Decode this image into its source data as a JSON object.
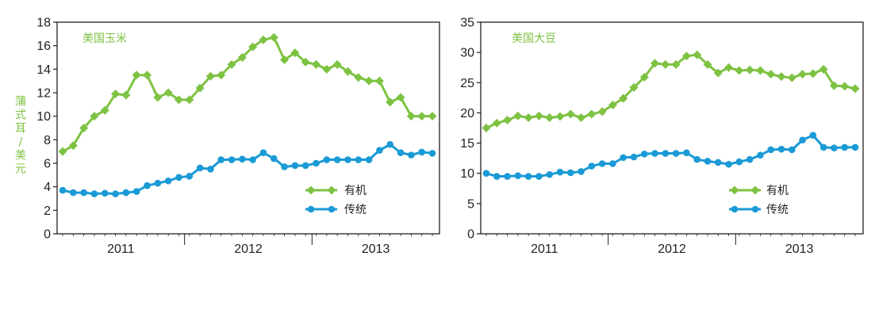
{
  "colors": {
    "organic": "#7dc242",
    "conventional": "#1a9ad6",
    "axis": "#231f20"
  },
  "chart_data": [
    {
      "type": "line",
      "title": "美国玉米",
      "ylabel": "蒲式耳/美元",
      "xlabel": "",
      "ylim": [
        0,
        18
      ],
      "yticks": [
        0,
        2,
        4,
        6,
        8,
        10,
        12,
        14,
        16,
        18
      ],
      "years": [
        "2011",
        "2012",
        "2013"
      ],
      "months_per_year": 12,
      "legend_position": "bottom-right",
      "series": [
        {
          "name": "有机",
          "marker": "diamond",
          "color": "organic",
          "values": [
            7.0,
            7.5,
            9.0,
            10.0,
            10.5,
            11.9,
            11.8,
            13.5,
            13.5,
            11.6,
            12.0,
            11.4,
            11.4,
            12.4,
            13.4,
            13.5,
            14.4,
            15.0,
            15.9,
            16.5,
            16.7,
            14.8,
            15.4,
            14.6,
            14.4,
            14.0,
            14.4,
            13.8,
            13.3,
            13.0,
            13.0,
            11.2,
            11.6,
            10.0,
            10.0,
            10.0
          ]
        },
        {
          "name": "传统",
          "marker": "circle",
          "color": "conventional",
          "values": [
            3.7,
            3.5,
            3.5,
            3.4,
            3.45,
            3.4,
            3.5,
            3.6,
            4.1,
            4.3,
            4.5,
            4.8,
            4.9,
            5.6,
            5.5,
            6.3,
            6.3,
            6.35,
            6.3,
            6.9,
            6.4,
            5.7,
            5.8,
            5.8,
            6.0,
            6.3,
            6.3,
            6.3,
            6.3,
            6.3,
            7.1,
            7.6,
            6.9,
            6.7,
            6.95,
            6.85
          ]
        }
      ]
    },
    {
      "type": "line",
      "title": "美国大豆",
      "ylabel": "",
      "xlabel": "",
      "ylim": [
        0,
        35
      ],
      "yticks": [
        0,
        5,
        10,
        15,
        20,
        25,
        30,
        35
      ],
      "years": [
        "2011",
        "2012",
        "2013"
      ],
      "months_per_year": 12,
      "legend_position": "bottom-right",
      "series": [
        {
          "name": "有机",
          "marker": "diamond",
          "color": "organic",
          "values": [
            17.5,
            18.3,
            18.8,
            19.5,
            19.2,
            19.5,
            19.2,
            19.4,
            19.8,
            19.2,
            19.8,
            20.2,
            21.3,
            22.4,
            24.2,
            25.9,
            28.2,
            28.0,
            28.0,
            29.4,
            29.6,
            28.0,
            26.6,
            27.5,
            27.0,
            27.1,
            27.0,
            26.4,
            26.0,
            25.8,
            26.4,
            26.5,
            27.2,
            24.5,
            24.4,
            24.0
          ]
        },
        {
          "name": "传统",
          "marker": "circle",
          "color": "conventional",
          "values": [
            10.0,
            9.5,
            9.5,
            9.6,
            9.5,
            9.5,
            9.8,
            10.2,
            10.1,
            10.3,
            11.2,
            11.6,
            11.6,
            12.6,
            12.7,
            13.2,
            13.3,
            13.3,
            13.3,
            13.4,
            12.3,
            12.0,
            11.8,
            11.5,
            11.9,
            12.3,
            13.0,
            13.9,
            14.0,
            13.9,
            15.5,
            16.3,
            14.3,
            14.2,
            14.3,
            14.3
          ]
        }
      ]
    }
  ]
}
